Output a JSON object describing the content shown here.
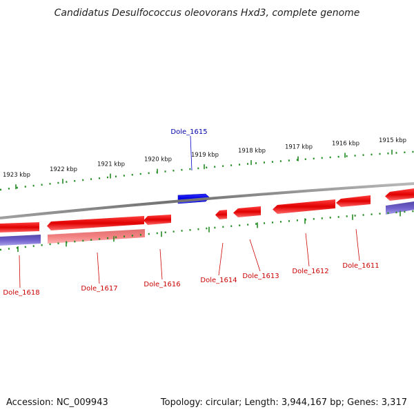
{
  "title": "Candidatus Desulfococcus oleovorans Hxd3, complete genome",
  "footer": {
    "accession": "Accession: NC_009943",
    "summary": "Topology: circular; Length: 3,944,167 bp; Genes: 3,317"
  },
  "colors": {
    "forward_gene": "#0000ff",
    "reverse_gene": "#ff0000",
    "reverse_gene_pale": "#f07070",
    "rna_feature": "#6a5acd",
    "backbone": "#808080",
    "ruler": "#228b22",
    "forward_label": "#0000aa",
    "reverse_label": "#cc0000"
  },
  "ruler_labels": [
    "1923 kbp",
    "1922 kbp",
    "1921 kbp",
    "1920 kbp",
    "1919 kbp",
    "1918 kbp",
    "1917 kbp",
    "1916 kbp",
    "1915 kbp"
  ],
  "genes": [
    {
      "name": "Dole_1615",
      "strand": "forward"
    },
    {
      "name": "Dole_1618",
      "strand": "reverse"
    },
    {
      "name": "Dole_1617",
      "strand": "reverse"
    },
    {
      "name": "Dole_1616",
      "strand": "reverse"
    },
    {
      "name": "Dole_1614",
      "strand": "reverse"
    },
    {
      "name": "Dole_1613",
      "strand": "reverse"
    },
    {
      "name": "Dole_1612",
      "strand": "reverse"
    },
    {
      "name": "Dole_1611",
      "strand": "reverse"
    }
  ]
}
